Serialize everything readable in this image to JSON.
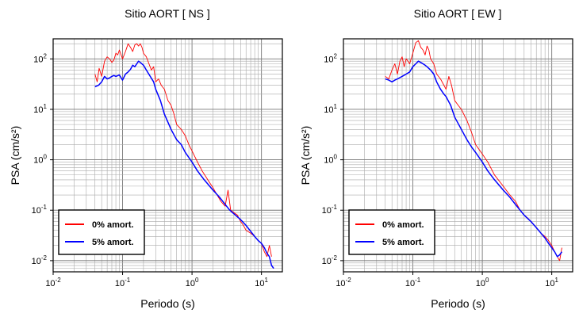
{
  "chart_data": [
    {
      "type": "line",
      "title": "Sitio AORT [ NS ]",
      "xlabel": "Periodo (s)",
      "ylabel": "PSA (cm/s²)",
      "xscale": "log",
      "yscale": "log",
      "xlim": [
        0.01,
        20
      ],
      "ylim": [
        0.006,
        250
      ],
      "grid": true,
      "legend_position": "bottom-left",
      "x_ticks": [
        0.01,
        0.1,
        1,
        10
      ],
      "x_tick_labels": [
        {
          "base": "10",
          "exp": "-2"
        },
        {
          "base": "10",
          "exp": "-1"
        },
        {
          "base": "10",
          "exp": "0"
        },
        {
          "base": "10",
          "exp": "1"
        }
      ],
      "y_ticks": [
        0.01,
        0.1,
        1,
        10,
        100
      ],
      "y_tick_labels": [
        {
          "base": "10",
          "exp": "-2"
        },
        {
          "base": "10",
          "exp": "-1"
        },
        {
          "base": "10",
          "exp": "0"
        },
        {
          "base": "10",
          "exp": "1"
        },
        {
          "base": "10",
          "exp": "2"
        }
      ],
      "series": [
        {
          "name": "0% amort.",
          "color": "#ff0000",
          "x": [
            0.04,
            0.043,
            0.046,
            0.05,
            0.055,
            0.06,
            0.065,
            0.07,
            0.075,
            0.08,
            0.085,
            0.09,
            0.1,
            0.11,
            0.12,
            0.13,
            0.14,
            0.15,
            0.16,
            0.17,
            0.18,
            0.19,
            0.2,
            0.22,
            0.24,
            0.26,
            0.28,
            0.3,
            0.33,
            0.36,
            0.4,
            0.45,
            0.5,
            0.55,
            0.6,
            0.7,
            0.8,
            0.9,
            1.0,
            1.2,
            1.4,
            1.6,
            1.8,
            2.0,
            2.3,
            2.6,
            3.0,
            3.3,
            3.6,
            4.0,
            4.5,
            5.0,
            5.5,
            6.0,
            7.0,
            8.0,
            9.0,
            10.0,
            11.0,
            12.0,
            13.0,
            14.0
          ],
          "y": [
            50,
            35,
            65,
            45,
            90,
            110,
            100,
            85,
            95,
            130,
            120,
            150,
            100,
            140,
            200,
            170,
            140,
            190,
            200,
            180,
            200,
            170,
            130,
            110,
            80,
            60,
            70,
            35,
            40,
            30,
            25,
            15,
            12,
            8,
            5,
            4,
            3,
            2,
            1.5,
            0.9,
            0.6,
            0.45,
            0.35,
            0.28,
            0.2,
            0.15,
            0.12,
            0.25,
            0.1,
            0.09,
            0.08,
            0.06,
            0.05,
            0.04,
            0.035,
            0.03,
            0.025,
            0.022,
            0.015,
            0.012,
            0.02,
            0.012
          ]
        },
        {
          "name": "5% amort.",
          "color": "#0000ff",
          "x": [
            0.04,
            0.045,
            0.05,
            0.055,
            0.06,
            0.065,
            0.07,
            0.075,
            0.08,
            0.09,
            0.1,
            0.11,
            0.12,
            0.13,
            0.14,
            0.15,
            0.16,
            0.17,
            0.18,
            0.2,
            0.22,
            0.25,
            0.28,
            0.3,
            0.35,
            0.4,
            0.5,
            0.6,
            0.7,
            0.8,
            1.0,
            1.2,
            1.5,
            2.0,
            2.5,
            3.0,
            3.5,
            4.0,
            5.0,
            6.0,
            7.0,
            8.0,
            9.0,
            10.0,
            11.0,
            12.0,
            13.0,
            14.0,
            15.0
          ],
          "y": [
            28,
            30,
            35,
            45,
            40,
            42,
            45,
            47,
            45,
            48,
            38,
            50,
            55,
            62,
            75,
            70,
            80,
            90,
            85,
            75,
            60,
            45,
            35,
            25,
            15,
            8,
            4,
            2.5,
            2.0,
            1.4,
            0.9,
            0.6,
            0.4,
            0.25,
            0.18,
            0.13,
            0.1,
            0.085,
            0.065,
            0.05,
            0.038,
            0.03,
            0.025,
            0.022,
            0.018,
            0.014,
            0.012,
            0.008,
            0.007
          ]
        }
      ]
    },
    {
      "type": "line",
      "title": "Sitio AORT [ EW ]",
      "xlabel": "Periodo (s)",
      "ylabel": "PSA (cm/s²)",
      "xscale": "log",
      "yscale": "log",
      "xlim": [
        0.01,
        20
      ],
      "ylim": [
        0.006,
        250
      ],
      "grid": true,
      "legend_position": "bottom-left",
      "x_ticks": [
        0.01,
        0.1,
        1,
        10
      ],
      "x_tick_labels": [
        {
          "base": "10",
          "exp": "-2"
        },
        {
          "base": "10",
          "exp": "-1"
        },
        {
          "base": "10",
          "exp": "0"
        },
        {
          "base": "10",
          "exp": "1"
        }
      ],
      "y_ticks": [
        0.01,
        0.1,
        1,
        10,
        100
      ],
      "y_tick_labels": [
        {
          "base": "10",
          "exp": "-2"
        },
        {
          "base": "10",
          "exp": "-1"
        },
        {
          "base": "10",
          "exp": "0"
        },
        {
          "base": "10",
          "exp": "1"
        },
        {
          "base": "10",
          "exp": "2"
        }
      ],
      "series": [
        {
          "name": "0% amort.",
          "color": "#ff0000",
          "x": [
            0.04,
            0.045,
            0.05,
            0.055,
            0.06,
            0.065,
            0.07,
            0.075,
            0.08,
            0.085,
            0.09,
            0.1,
            0.11,
            0.12,
            0.13,
            0.14,
            0.15,
            0.16,
            0.17,
            0.18,
            0.2,
            0.22,
            0.25,
            0.28,
            0.3,
            0.33,
            0.36,
            0.4,
            0.45,
            0.5,
            0.6,
            0.7,
            0.8,
            1.0,
            1.2,
            1.5,
            2.0,
            2.5,
            3.0,
            3.5,
            4.0,
            4.5,
            5.0,
            6.0,
            7.0,
            8.0,
            9.0,
            10.0,
            11.0,
            12.0,
            13.0,
            14.0
          ],
          "y": [
            45,
            40,
            60,
            80,
            50,
            90,
            110,
            70,
            100,
            90,
            80,
            130,
            210,
            230,
            170,
            150,
            120,
            180,
            150,
            100,
            80,
            50,
            40,
            30,
            25,
            45,
            30,
            15,
            12,
            10,
            6,
            3.5,
            2,
            1.3,
            0.9,
            0.5,
            0.3,
            0.2,
            0.15,
            0.1,
            0.08,
            0.07,
            0.06,
            0.045,
            0.035,
            0.03,
            0.025,
            0.02,
            0.015,
            0.012,
            0.01,
            0.018
          ]
        },
        {
          "name": "5% amort.",
          "color": "#0000ff",
          "x": [
            0.04,
            0.045,
            0.05,
            0.055,
            0.06,
            0.07,
            0.08,
            0.09,
            0.1,
            0.11,
            0.12,
            0.13,
            0.14,
            0.15,
            0.16,
            0.18,
            0.2,
            0.22,
            0.25,
            0.28,
            0.3,
            0.35,
            0.4,
            0.5,
            0.6,
            0.7,
            0.8,
            1.0,
            1.2,
            1.5,
            2.0,
            2.5,
            3.0,
            3.5,
            4.0,
            5.0,
            6.0,
            7.0,
            8.0,
            9.0,
            10.0,
            11.0,
            12.0,
            13.0,
            14.0
          ],
          "y": [
            40,
            38,
            35,
            38,
            40,
            45,
            50,
            55,
            70,
            80,
            90,
            85,
            80,
            75,
            70,
            60,
            50,
            35,
            25,
            20,
            18,
            12,
            7,
            4,
            2.5,
            1.8,
            1.4,
            0.9,
            0.6,
            0.4,
            0.25,
            0.18,
            0.13,
            0.1,
            0.08,
            0.06,
            0.045,
            0.035,
            0.028,
            0.022,
            0.018,
            0.015,
            0.012,
            0.013,
            0.015
          ]
        }
      ]
    }
  ]
}
